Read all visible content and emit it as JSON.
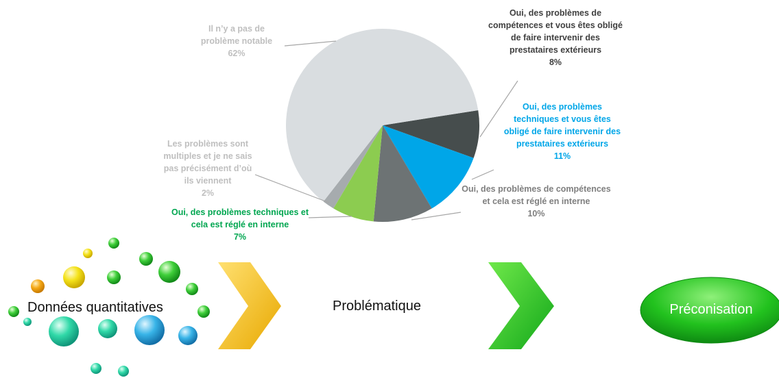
{
  "chart_data": {
    "type": "pie",
    "categories": [
      "Oui, des problèmes de compétences et vous êtes obligé de faire intervenir des prestataires extérieurs",
      "Oui, des problèmes techniques et vous êtes obligé de faire intervenir des prestataires extérieurs",
      "Oui, des problèmes de compétences et cela est réglé en interne",
      "Oui, des problèmes techniques et cela est réglé en interne",
      "Les problèmes sont multiples et je ne sais pas précisément d’où ils viennent",
      "Il n’y a pas de problème notable"
    ],
    "values": [
      8,
      11,
      10,
      7,
      2,
      62
    ],
    "value_labels": [
      "8%",
      "11%",
      "10%",
      "7%",
      "2%",
      "62%"
    ],
    "colors": [
      "#464d4d",
      "#00a6e8",
      "#6d7374",
      "#8ccc50",
      "#a6abae",
      "#d9dde0"
    ],
    "label_colors": [
      "#404040",
      "#00a6e8",
      "#7f7f7f",
      "#00a650",
      "#bfbfbf",
      "#bfbfbf"
    ]
  },
  "flow": [
    "Données quantitatives",
    "Problématique",
    "Préconisation"
  ]
}
